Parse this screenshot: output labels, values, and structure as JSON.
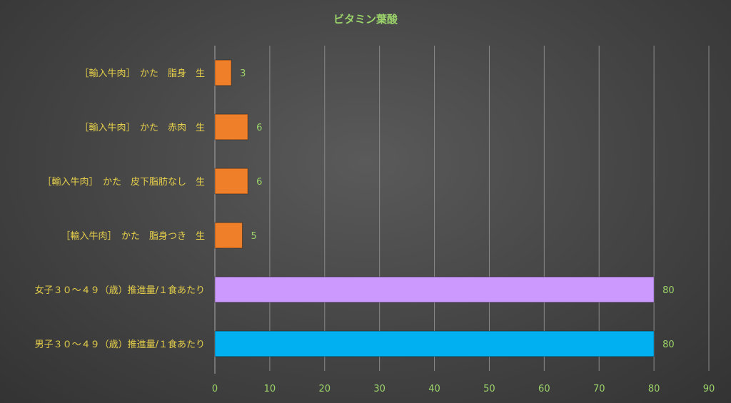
{
  "chart_data": {
    "type": "bar",
    "orientation": "horizontal",
    "title": "ビタミン葉酸",
    "categories": [
      "［輸入牛肉］　かた　脂身　生",
      "［輸入牛肉］　かた　赤肉　生",
      "［輸入牛肉］　かた　皮下脂肪なし　生",
      "［輸入牛肉］　かた　脂身つき　生",
      "女子３０〜４９（歳）推進量/１食あたり",
      "男子３０〜４９（歳）推進量/１食あたり"
    ],
    "values": [
      3,
      6,
      6,
      5,
      80,
      80
    ],
    "bar_colors": [
      "#f07f2a",
      "#f07f2a",
      "#f07f2a",
      "#f07f2a",
      "#cc99ff",
      "#00b0f0"
    ],
    "xlim": [
      0,
      90
    ],
    "xticks": [
      0,
      10,
      20,
      30,
      40,
      50,
      60,
      70,
      80,
      90
    ],
    "grid": true,
    "legend": "none",
    "xlabel": "",
    "ylabel": ""
  }
}
